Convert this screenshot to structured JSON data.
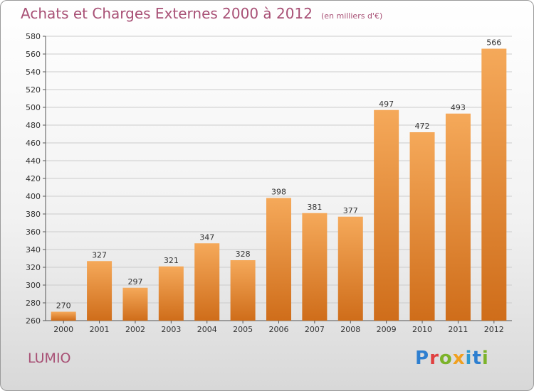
{
  "header": {
    "title": "Achats et Charges Externes 2000 à 2012",
    "subtitle": "(en milliers d'€)"
  },
  "footer": {
    "place": "LUMIO",
    "brand": "Proxiti"
  },
  "colors": {
    "accent": "#a85075",
    "bar_top": "#f5a95a",
    "bar_bottom": "#cf6d1a",
    "grid": "#cccccc"
  },
  "chart_data": {
    "type": "bar",
    "title": "Achats et Charges Externes 2000 à 2012",
    "subtitle": "(en milliers d'€)",
    "xlabel": "",
    "ylabel": "",
    "categories": [
      "2000",
      "2001",
      "2002",
      "2003",
      "2004",
      "2005",
      "2006",
      "2007",
      "2008",
      "2009",
      "2010",
      "2011",
      "2012"
    ],
    "values": [
      270,
      327,
      297,
      321,
      347,
      328,
      398,
      381,
      377,
      497,
      472,
      493,
      566
    ],
    "ylim": [
      260,
      580
    ],
    "yticks": [
      260,
      280,
      300,
      320,
      340,
      360,
      380,
      400,
      420,
      440,
      460,
      480,
      500,
      520,
      540,
      560,
      580
    ],
    "grid": true,
    "legend": "none"
  }
}
